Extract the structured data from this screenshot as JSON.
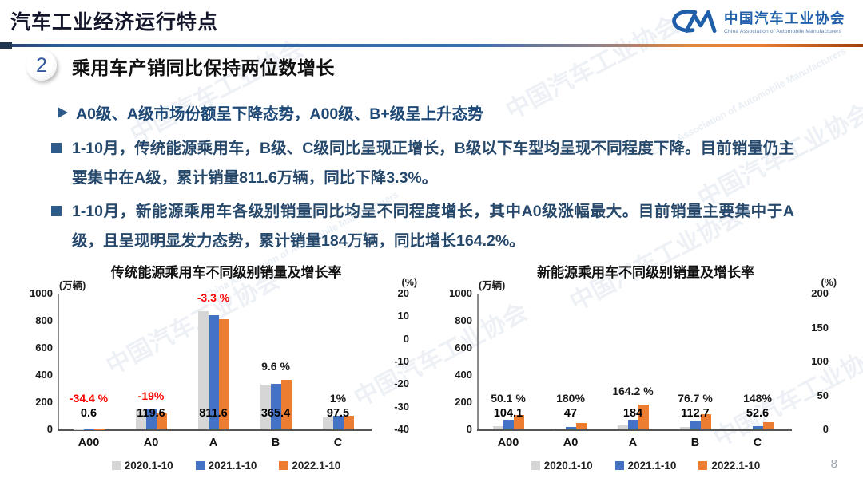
{
  "page": {
    "title": "汽车工业经济运行特点",
    "page_number": "8",
    "watermark": "中国汽车工业协会",
    "logo": {
      "org_name_cn": "中国汽车工业协会",
      "org_name_en": "China Association of Automobile Manufacturers"
    },
    "section": {
      "number": "2",
      "heading": "乘用车产销同比保持两位数增长"
    },
    "subheading": "A0级、A级市场份额呈下降态势，A00级、B+级呈上升态势",
    "bullets": [
      "1-10月，传统能源乘用车，B级、C级同比呈现正增长，B级以下车型均呈现不同程度下降。目前销量仍主要集中在A级，累计销量811.6万辆，同比下降3.3%。",
      "1-10月，新能源乘用车各级别销量同比均呈不同程度增长，其中A0级涨幅最大。目前销量主要集中于A级，且呈现明显发力态势，累计销量184万辆，同比增长164.2%。"
    ]
  },
  "colors": {
    "series_gray": "#D6D6D6",
    "series_blue": "#4472C4",
    "series_orange": "#ED7D31",
    "negative_red": "#FF0000",
    "brand_blue": "#1F5FA9"
  },
  "chart_data": [
    {
      "type": "bar",
      "title": "传统能源乘用车不同级别销量及增长率",
      "left_axis": {
        "label": "(万辆)",
        "ticks": [
          "1000",
          "800",
          "600",
          "400",
          "200",
          "0"
        ],
        "range": [
          0,
          1000
        ]
      },
      "right_axis": {
        "label": "(%)",
        "ticks": [
          "20",
          "10",
          "0",
          "-10",
          "-20",
          "-30",
          "-40"
        ],
        "range": [
          -40,
          20
        ]
      },
      "categories": [
        "A00",
        "A0",
        "A",
        "B",
        "C"
      ],
      "series": [
        {
          "name": "2020.1-10",
          "color": "#D6D6D6",
          "values": [
            1,
            150,
            870,
            330,
            88
          ]
        },
        {
          "name": "2021.1-10",
          "color": "#4472C4",
          "values": [
            1,
            148,
            840,
            333,
            100
          ]
        },
        {
          "name": "2022.1-10",
          "color": "#ED7D31",
          "values": [
            0.6,
            119.6,
            811.6,
            365.4,
            97.5
          ]
        }
      ],
      "value_labels": [
        "0.6",
        "119.6",
        "811.6",
        "365.4",
        "97.5"
      ],
      "growth_labels": [
        {
          "text": "-34.4 %",
          "negative": true
        },
        {
          "text": "-19%",
          "negative": true
        },
        {
          "text": "-3.3 %",
          "negative": true
        },
        {
          "text": "9.6 %",
          "negative": false
        },
        {
          "text": "1%",
          "negative": false
        }
      ],
      "legend": [
        "2020.1-10",
        "2021.1-10",
        "2022.1-10"
      ],
      "legend_position": "bottom",
      "grid": false
    },
    {
      "type": "bar",
      "title": "新能源乘用车不同级别销量及增长率",
      "left_axis": {
        "label": "(万辆)",
        "ticks": [
          "1000",
          "800",
          "600",
          "400",
          "200",
          "0"
        ],
        "range": [
          0,
          1000
        ]
      },
      "right_axis": {
        "label": "(%)",
        "ticks": [
          "200",
          "150",
          "100",
          "50",
          "0"
        ],
        "range": [
          0,
          200
        ]
      },
      "categories": [
        "A00",
        "A0",
        "A",
        "B",
        "C"
      ],
      "series": [
        {
          "name": "2020.1-10",
          "color": "#D6D6D6",
          "values": [
            25,
            5,
            28,
            20,
            3
          ]
        },
        {
          "name": "2021.1-10",
          "color": "#4472C4",
          "values": [
            69,
            17,
            70,
            64,
            21
          ]
        },
        {
          "name": "2022.1-10",
          "color": "#ED7D31",
          "values": [
            104.1,
            47,
            184,
            112.7,
            52.6
          ]
        }
      ],
      "value_labels": [
        "104.1",
        "47",
        "184",
        "112.7",
        "52.6"
      ],
      "growth_labels": [
        {
          "text": "50.1 %",
          "negative": false
        },
        {
          "text": "180%",
          "negative": false
        },
        {
          "text": "164.2 %",
          "negative": false
        },
        {
          "text": "76.7 %",
          "negative": false
        },
        {
          "text": "148%",
          "negative": false
        }
      ],
      "legend": [
        "2020.1-10",
        "2021.1-10",
        "2022.1-10"
      ],
      "legend_position": "bottom",
      "grid": false
    }
  ]
}
